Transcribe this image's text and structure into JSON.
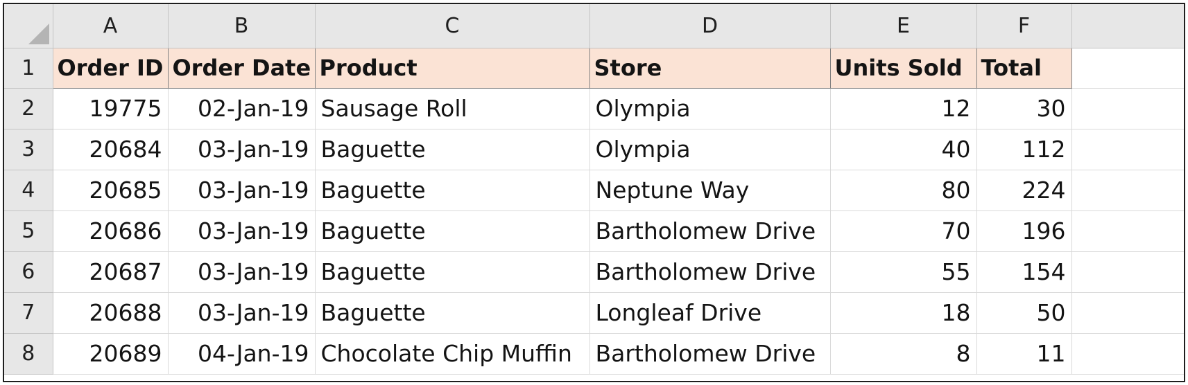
{
  "sheet": {
    "column_letters": [
      "A",
      "B",
      "C",
      "D",
      "E",
      "F"
    ],
    "row_numbers": [
      "1",
      "2",
      "3",
      "4",
      "5",
      "6",
      "7",
      "8"
    ],
    "headers": [
      "Order ID",
      "Order Date",
      "Product",
      "Store",
      "Units Sold",
      "Total"
    ],
    "rows": [
      [
        "19775",
        "02-Jan-19",
        "Sausage Roll",
        "Olympia",
        "12",
        "30"
      ],
      [
        "20684",
        "03-Jan-19",
        "Baguette",
        "Olympia",
        "40",
        "112"
      ],
      [
        "20685",
        "03-Jan-19",
        "Baguette",
        "Neptune Way",
        "80",
        "224"
      ],
      [
        "20686",
        "03-Jan-19",
        "Baguette",
        "Bartholomew Drive",
        "70",
        "196"
      ],
      [
        "20687",
        "03-Jan-19",
        "Baguette",
        "Bartholomew Drive",
        "55",
        "154"
      ],
      [
        "20688",
        "03-Jan-19",
        "Baguette",
        "Longleaf Drive",
        "18",
        "50"
      ],
      [
        "20689",
        "04-Jan-19",
        "Chocolate Chip Muffin",
        "Bartholomew Drive",
        "8",
        "11"
      ]
    ]
  },
  "colors": {
    "header_fill": "#fbe3d5",
    "grid_header_fill": "#e7e7e7",
    "gridline": "#d9d9d9"
  }
}
